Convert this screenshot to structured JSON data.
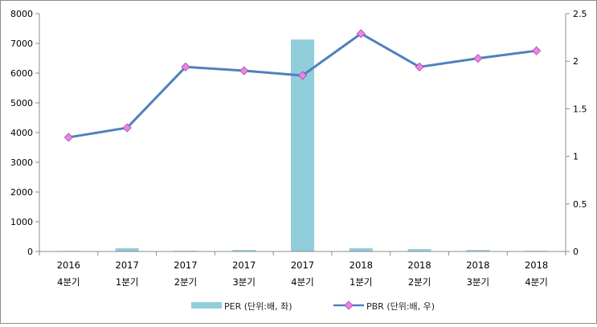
{
  "chart_data": {
    "type": "bar+line",
    "categories": [
      [
        "2016",
        "4분기"
      ],
      [
        "2017",
        "1분기"
      ],
      [
        "2017",
        "2분기"
      ],
      [
        "2017",
        "3분기"
      ],
      [
        "2017",
        "4분기"
      ],
      [
        "2018",
        "1분기"
      ],
      [
        "2018",
        "2분기"
      ],
      [
        "2018",
        "3분기"
      ],
      [
        "2018",
        "4분기"
      ]
    ],
    "series": [
      {
        "name": "PER (단위:배, 좌)",
        "kind": "bar",
        "axis": "left",
        "color": "#92CDDC",
        "values": [
          20,
          110,
          25,
          50,
          7130,
          110,
          80,
          50,
          25
        ]
      },
      {
        "name": "PBR (단위:배, 우)",
        "kind": "line",
        "axis": "right",
        "color": "#4F81BD",
        "marker_color": "#EE82EE",
        "values": [
          1.2,
          1.3,
          1.94,
          1.9,
          1.85,
          2.29,
          1.94,
          2.03,
          2.11
        ]
      }
    ],
    "y_left": {
      "min": 0,
      "max": 8000,
      "ticks": [
        "0",
        "1000",
        "2000",
        "3000",
        "4000",
        "5000",
        "6000",
        "7000",
        "8000"
      ]
    },
    "y_right": {
      "min": 0,
      "max": 2.5,
      "ticks": [
        "0",
        "0.5",
        "1",
        "1.5",
        "2",
        "2.5"
      ]
    },
    "grid": false,
    "legend_position": "bottom"
  }
}
